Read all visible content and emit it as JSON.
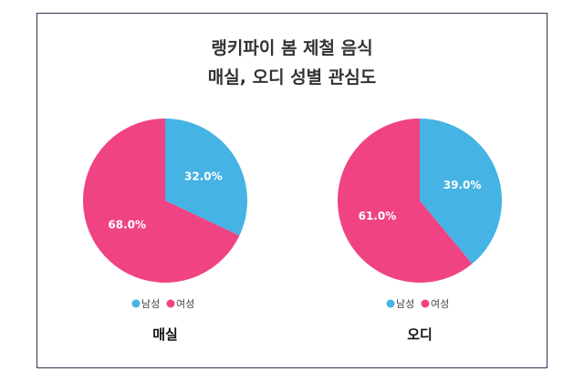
{
  "chart_data": [
    {
      "type": "pie",
      "title_lines": [
        "랭키파이 봄 제철 음식",
        "매실, 오디 성별 관심도"
      ],
      "label": "매실",
      "categories": [
        "남성",
        "여성"
      ],
      "values": [
        32.0,
        68.0
      ],
      "data_labels": [
        "32.0%",
        "68.0%"
      ],
      "colors": [
        "#45b3e3",
        "#ef4383"
      ],
      "legend": "bottom"
    },
    {
      "type": "pie",
      "label": "오디",
      "categories": [
        "남성",
        "여성"
      ],
      "values": [
        39.0,
        61.0
      ],
      "data_labels": [
        "39.0%",
        "61.0%"
      ],
      "colors": [
        "#45b3e3",
        "#ef4383"
      ],
      "legend": "bottom"
    }
  ]
}
